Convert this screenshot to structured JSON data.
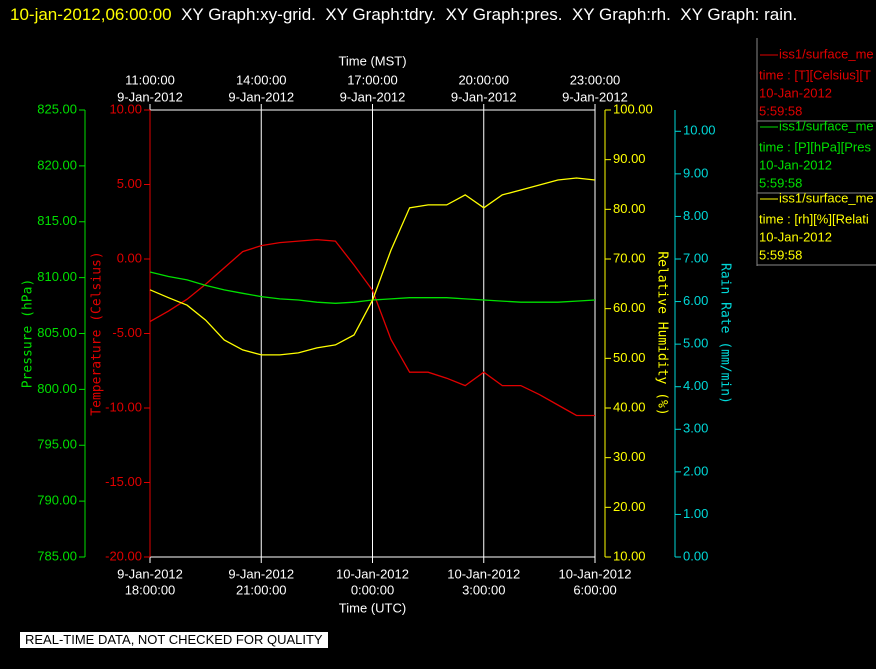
{
  "chart_data": {
    "type": "line",
    "title_time": "10-jan-2012,06:00:00",
    "title": "XY Graph:xy-grid.  XY Graph:tdry.  XY Graph:pres.  XY Graph:rh.  XY Graph: rain.",
    "note": "REAL-TIME DATA, NOT CHECKED FOR QUALITY",
    "x_label": "Time (UTC)",
    "x2_label": "Time (MST)",
    "grid": true,
    "xlim": [
      "2012-01-09T18:00",
      "2012-01-10T06:00"
    ],
    "xticks": [
      {
        "value": "2012-01-09T18:00",
        "label": [
          "9-Jan-2012",
          "18:00:00"
        ]
      },
      {
        "value": "2012-01-09T21:00",
        "label": [
          "9-Jan-2012",
          "21:00:00"
        ]
      },
      {
        "value": "2012-01-10T00:00",
        "label": [
          "10-Jan-2012",
          "0:00:00"
        ]
      },
      {
        "value": "2012-01-10T03:00",
        "label": [
          "10-Jan-2012",
          "3:00:00"
        ]
      },
      {
        "value": "2012-01-10T06:00",
        "label": [
          "10-Jan-2012",
          "6:00:00"
        ]
      }
    ],
    "x2ticks": [
      {
        "value": "2012-01-09T18:00",
        "label": [
          "11:00:00",
          "9-Jan-2012"
        ]
      },
      {
        "value": "2012-01-09T21:00",
        "label": [
          "14:00:00",
          "9-Jan-2012"
        ]
      },
      {
        "value": "2012-01-10T00:00",
        "label": [
          "17:00:00",
          "9-Jan-2012"
        ]
      },
      {
        "value": "2012-01-10T03:00",
        "label": [
          "20:00:00",
          "9-Jan-2012"
        ]
      },
      {
        "value": "2012-01-10T06:00",
        "label": [
          "23:00:00",
          "9-Jan-2012"
        ]
      }
    ],
    "axes": [
      {
        "id": "pressure",
        "label": "Pressure (hPa)",
        "color": "#00e000",
        "lim": [
          785,
          825
        ],
        "ticks": [
          {
            "value": 785,
            "label": "785.00"
          },
          {
            "value": 790,
            "label": "790.00"
          },
          {
            "value": 795,
            "label": "795.00"
          },
          {
            "value": 800,
            "label": "800.00"
          },
          {
            "value": 805,
            "label": "805.00"
          },
          {
            "value": 810,
            "label": "810.00"
          },
          {
            "value": 815,
            "label": "815.00"
          },
          {
            "value": 820,
            "label": "820.00"
          },
          {
            "value": 825,
            "label": "825.00"
          }
        ]
      },
      {
        "id": "temperature",
        "label": "Temperature (Celsius)",
        "color": "#e00000",
        "lim": [
          -20,
          10
        ],
        "ticks": [
          {
            "value": -20,
            "label": "-20.00"
          },
          {
            "value": -15,
            "label": "-15.00"
          },
          {
            "value": -10,
            "label": "-10.00"
          },
          {
            "value": -5,
            "label": "-5.00"
          },
          {
            "value": 0,
            "label": "0.00"
          },
          {
            "value": 5,
            "label": "5.00"
          },
          {
            "value": 10,
            "label": "10.00"
          }
        ]
      },
      {
        "id": "rh",
        "label": "Relative Humidity (%)",
        "color": "#ffff00",
        "lim": [
          10,
          100
        ],
        "ticks": [
          {
            "value": 10,
            "label": "10.00"
          },
          {
            "value": 20,
            "label": "20.00"
          },
          {
            "value": 30,
            "label": "30.00"
          },
          {
            "value": 40,
            "label": "40.00"
          },
          {
            "value": 50,
            "label": "50.00"
          },
          {
            "value": 60,
            "label": "60.00"
          },
          {
            "value": 70,
            "label": "70.00"
          },
          {
            "value": 80,
            "label": "80.00"
          },
          {
            "value": 90,
            "label": "90.00"
          },
          {
            "value": 100,
            "label": "100.00"
          }
        ]
      },
      {
        "id": "rain",
        "label": "Rain Rate (mm/min)",
        "color": "#00d8d8",
        "lim": [
          0,
          10.5
        ],
        "ticks": [
          {
            "value": 0,
            "label": "0.00"
          },
          {
            "value": 1,
            "label": "1.00"
          },
          {
            "value": 2,
            "label": "2.00"
          },
          {
            "value": 3,
            "label": "3.00"
          },
          {
            "value": 4,
            "label": "4.00"
          },
          {
            "value": 5,
            "label": "5.00"
          },
          {
            "value": 6,
            "label": "6.00"
          },
          {
            "value": 7,
            "label": "7.00"
          },
          {
            "value": 8,
            "label": "8.00"
          },
          {
            "value": 9,
            "label": "9.00"
          },
          {
            "value": 10,
            "label": "10.00"
          }
        ]
      }
    ],
    "x": [
      "2012-01-09T18:00",
      "2012-01-09T18:30",
      "2012-01-09T19:00",
      "2012-01-09T19:30",
      "2012-01-09T20:00",
      "2012-01-09T20:30",
      "2012-01-09T21:00",
      "2012-01-09T21:30",
      "2012-01-09T22:00",
      "2012-01-09T22:30",
      "2012-01-09T23:00",
      "2012-01-09T23:30",
      "2012-01-10T00:00",
      "2012-01-10T00:30",
      "2012-01-10T01:00",
      "2012-01-10T01:30",
      "2012-01-10T02:00",
      "2012-01-10T02:30",
      "2012-01-10T03:00",
      "2012-01-10T03:30",
      "2012-01-10T04:00",
      "2012-01-10T04:30",
      "2012-01-10T05:00",
      "2012-01-10T05:30",
      "2012-01-10T06:00"
    ],
    "series": [
      {
        "name": "iss1/surface_me",
        "legend": [
          "time : [T][Celsius][T",
          "10-Jan-2012",
          "5:59:58"
        ],
        "axis": "temperature",
        "color": "#e00000",
        "values": [
          -4.2,
          -3.5,
          -2.7,
          -1.7,
          -0.6,
          0.5,
          0.9,
          1.1,
          1.2,
          1.3,
          1.2,
          -0.4,
          -2.1,
          -5.4,
          -7.6,
          -7.6,
          -8.0,
          -8.5,
          -7.6,
          -8.5,
          -8.5,
          -9.1,
          -9.8,
          -10.5,
          -10.5
        ]
      },
      {
        "name": "iss1/surface_me",
        "legend": [
          "time : [P][hPa][Pres",
          "10-Jan-2012",
          "5:59:58"
        ],
        "axis": "pressure",
        "color": "#00e000",
        "values": [
          810.5,
          810.1,
          809.8,
          809.3,
          808.9,
          808.6,
          808.3,
          808.1,
          808.0,
          807.8,
          807.7,
          807.8,
          808.0,
          808.1,
          808.2,
          808.2,
          808.2,
          808.1,
          808.0,
          807.9,
          807.8,
          807.8,
          807.8,
          807.9,
          808.0
        ]
      },
      {
        "name": "iss1/surface_me",
        "legend": [
          "time : [rh][%][Relati",
          "10-Jan-2012",
          "5:59:58"
        ],
        "axis": "rh",
        "color": "#ffff00",
        "values": [
          63.8,
          62.2,
          60.7,
          57.7,
          53.7,
          51.7,
          50.7,
          50.7,
          51.1,
          52.1,
          52.7,
          54.7,
          61.7,
          71.8,
          80.3,
          80.9,
          80.9,
          82.9,
          80.3,
          82.9,
          83.9,
          84.9,
          85.9,
          86.3,
          85.9
        ]
      }
    ]
  }
}
